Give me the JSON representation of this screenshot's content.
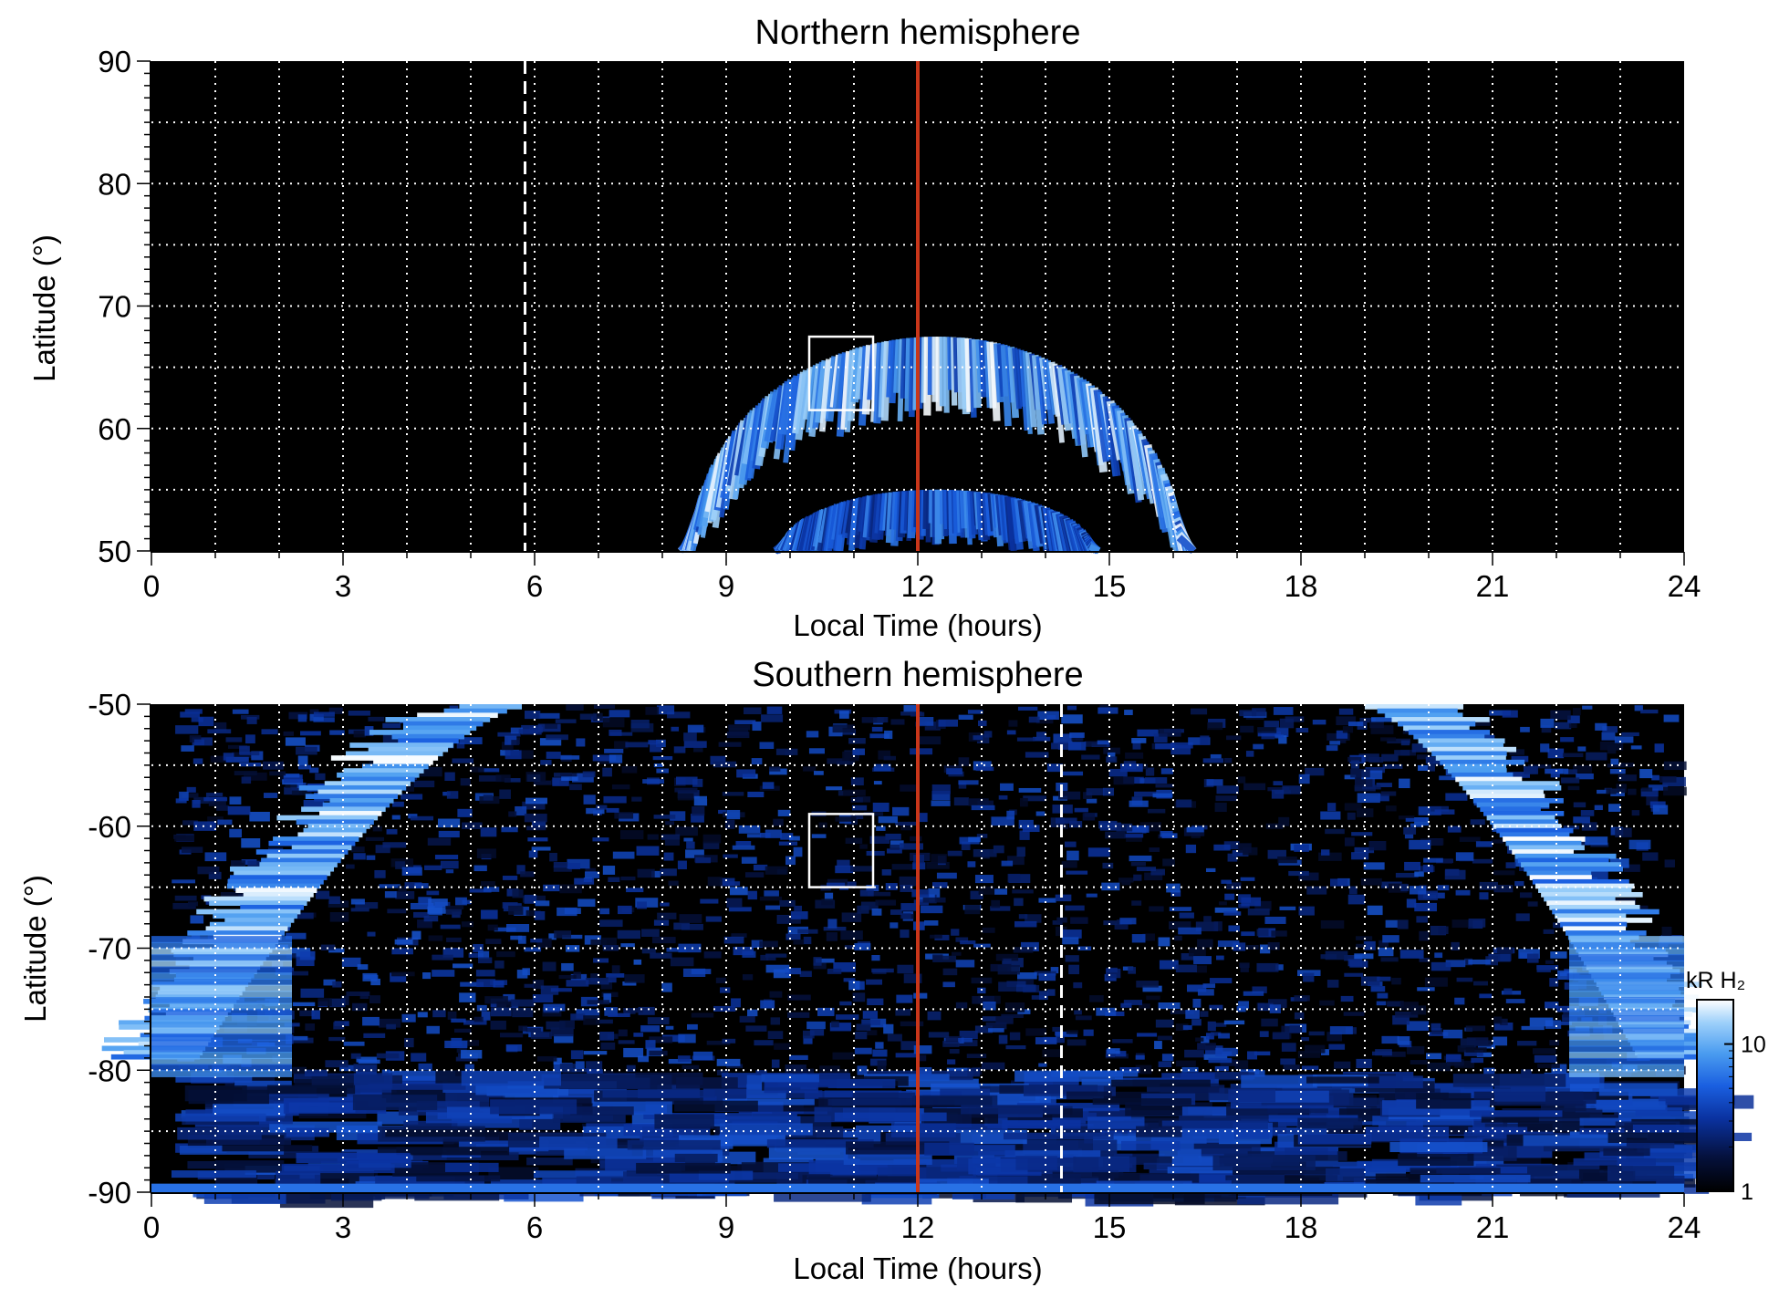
{
  "chart_data": [
    {
      "type": "heatmap",
      "title": "Northern hemisphere",
      "xlabel": "Local Time (hours)",
      "ylabel": "Latitude (°)",
      "xlim": [
        0,
        24
      ],
      "ylim": [
        50,
        90
      ],
      "xticks": [
        0,
        3,
        6,
        9,
        12,
        15,
        18,
        21,
        24
      ],
      "yticks": [
        50,
        60,
        70,
        80,
        90
      ],
      "grid": true,
      "grid_x_step": 1,
      "grid_y_step": 5,
      "background": "#000000",
      "noon_line": {
        "x": 12,
        "color": "#c9361a"
      },
      "dashed_line": {
        "x": 5.85,
        "color": "#ffffff"
      },
      "box": {
        "x": [
          10.3,
          11.3
        ],
        "y": [
          61.5,
          67.5
        ]
      },
      "emission": [
        {
          "feature": "main oval",
          "center_x": 12.3,
          "center_y": 50,
          "half_width_hours": 3.8,
          "peak_lat": 67.5,
          "band_thickness_deg": 7,
          "intensity_kR": 10
        },
        {
          "feature": "inner arc",
          "center_x": 12.3,
          "center_y": 50,
          "half_width_hours": 2.4,
          "peak_lat": 55,
          "band_thickness_deg": 4.5,
          "intensity_kR": 5
        }
      ]
    },
    {
      "type": "heatmap",
      "title": "Southern hemisphere",
      "xlabel": "Local Time (hours)",
      "ylabel": "Latitude (°)",
      "xlim": [
        0,
        24
      ],
      "ylim": [
        -90,
        -50
      ],
      "xticks": [
        0,
        3,
        6,
        9,
        12,
        15,
        18,
        21,
        24
      ],
      "yticks": [
        -90,
        -80,
        -70,
        -60,
        -50
      ],
      "grid": true,
      "grid_x_step": 1,
      "grid_y_step": 5,
      "background": "#000000",
      "noon_line": {
        "x": 12,
        "color": "#c9361a"
      },
      "dashed_line": {
        "x": 14.25,
        "color": "#ffffff"
      },
      "box": {
        "x": [
          10.3,
          11.3
        ],
        "y": [
          -65,
          -59
        ]
      },
      "emission": [
        {
          "feature": "main oval",
          "left_at_top_x": 5.8,
          "left_at_bottom_x": 0.6,
          "right_at_top_x": 19,
          "right_at_bottom_x": 23.4,
          "band_thickness_hours": 1.3,
          "intensity_kR": 20
        },
        {
          "feature": "polar region patches",
          "lat_range": [
            -90,
            -50
          ],
          "intensity_kR": 3
        }
      ]
    }
  ],
  "colorbar": {
    "label": "kR H₂",
    "scale": "log",
    "range": [
      1,
      20
    ],
    "ticks": [
      1,
      10
    ],
    "tick_labels": [
      "1",
      "10"
    ],
    "colors": [
      "#000000",
      "#05113d",
      "#0a32a0",
      "#1a5fe0",
      "#4a9cf0",
      "#9dd0fa",
      "#ffffff"
    ]
  }
}
